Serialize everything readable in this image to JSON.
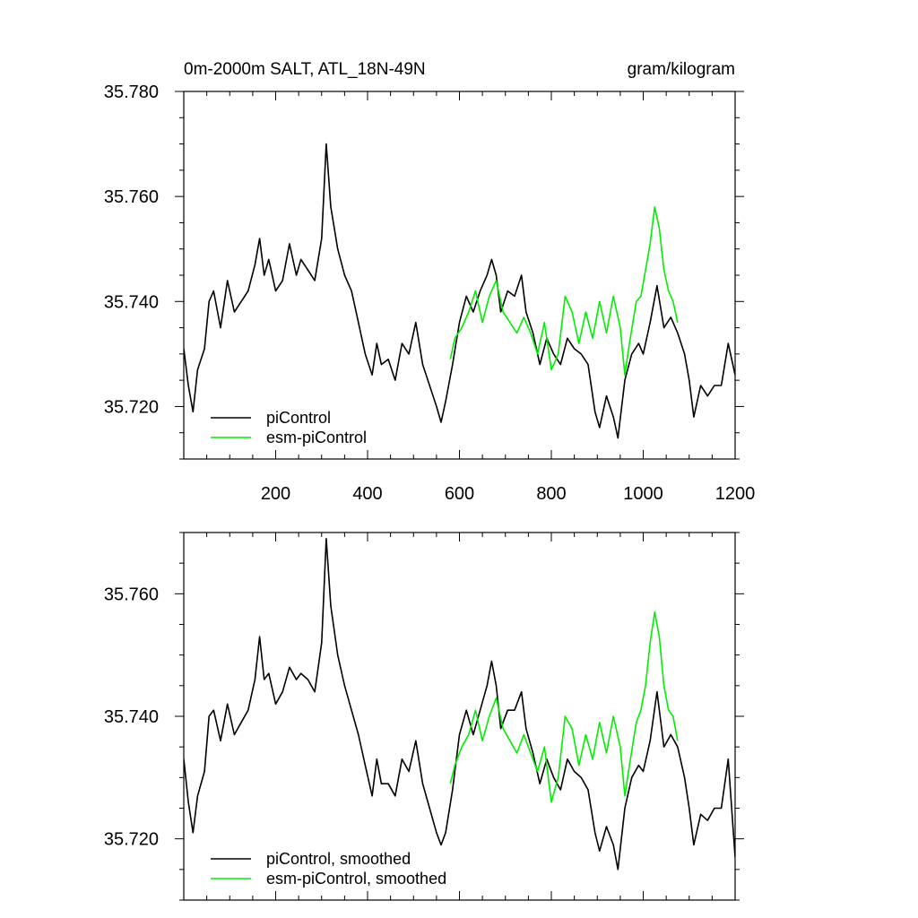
{
  "chart_data": [
    {
      "type": "line",
      "title": "0m-2000m SALT, ATL_18N-49N",
      "units": "gram/kilogram",
      "xlim": [
        0,
        1200
      ],
      "ylim": [
        35.71,
        35.78
      ],
      "x_tick_labels": [
        "200",
        "400",
        "600",
        "800",
        "1000",
        "1200"
      ],
      "y_tick_labels": [
        "35.780",
        "35.760",
        "35.740",
        "35.720"
      ],
      "grid": false,
      "legend_placement": "bottom-left",
      "series": [
        {
          "name": "piControl",
          "color": "#000000",
          "x": [
            0,
            10,
            20,
            30,
            45,
            55,
            65,
            80,
            95,
            110,
            125,
            140,
            155,
            165,
            175,
            185,
            200,
            215,
            230,
            245,
            255,
            270,
            285,
            300,
            310,
            320,
            335,
            350,
            365,
            380,
            395,
            410,
            420,
            430,
            445,
            460,
            475,
            490,
            505,
            520,
            535,
            550,
            560,
            570,
            585,
            600,
            615,
            630,
            645,
            660,
            670,
            680,
            690,
            705,
            720,
            735,
            745,
            760,
            775,
            790,
            805,
            820,
            835,
            850,
            865,
            880,
            895,
            905,
            920,
            935,
            945,
            960,
            975,
            990,
            1000,
            1015,
            1030,
            1045,
            1060,
            1075,
            1090,
            1100,
            1110,
            1125,
            1140,
            1155,
            1170,
            1185,
            1200
          ],
          "y": [
            35.731,
            35.724,
            35.719,
            35.727,
            35.731,
            35.74,
            35.742,
            35.735,
            35.744,
            35.738,
            35.74,
            35.742,
            35.747,
            35.752,
            35.745,
            35.748,
            35.742,
            35.744,
            35.751,
            35.745,
            35.748,
            35.746,
            35.744,
            35.752,
            35.77,
            35.758,
            35.75,
            35.745,
            35.742,
            35.736,
            35.73,
            35.726,
            35.732,
            35.728,
            35.729,
            35.725,
            35.732,
            35.73,
            35.736,
            35.728,
            35.724,
            35.72,
            35.717,
            35.721,
            35.728,
            35.736,
            35.741,
            35.738,
            35.742,
            35.745,
            35.748,
            35.745,
            35.738,
            35.742,
            35.741,
            35.745,
            35.738,
            35.734,
            35.728,
            35.733,
            35.73,
            35.728,
            35.733,
            35.731,
            35.73,
            35.728,
            35.719,
            35.716,
            35.722,
            35.718,
            35.714,
            35.725,
            35.73,
            35.732,
            35.73,
            35.736,
            35.743,
            35.735,
            35.737,
            35.734,
            35.73,
            35.725,
            35.718,
            35.724,
            35.722,
            35.724,
            35.724,
            35.732,
            35.726
          ]
        },
        {
          "name": "esm-piControl",
          "color": "#00ee00",
          "x": [
            580,
            590,
            605,
            620,
            635,
            650,
            665,
            680,
            695,
            710,
            725,
            740,
            755,
            770,
            785,
            800,
            815,
            830,
            845,
            860,
            875,
            890,
            905,
            920,
            935,
            950,
            960,
            970,
            985,
            995,
            1005,
            1015,
            1025,
            1035,
            1045,
            1055,
            1065,
            1075
          ],
          "y": [
            35.729,
            35.733,
            35.735,
            35.738,
            35.742,
            35.736,
            35.741,
            35.744,
            35.738,
            35.736,
            35.734,
            35.737,
            35.734,
            35.73,
            35.736,
            35.727,
            35.73,
            35.741,
            35.738,
            35.732,
            35.738,
            35.733,
            35.74,
            35.734,
            35.741,
            35.735,
            35.726,
            35.732,
            35.74,
            35.741,
            35.746,
            35.751,
            35.758,
            35.754,
            35.746,
            35.742,
            35.74,
            35.736
          ]
        }
      ]
    },
    {
      "type": "line",
      "xlim": [
        0,
        1200
      ],
      "ylim": [
        35.71,
        35.77
      ],
      "y_tick_labels": [
        "35.760",
        "35.740",
        "35.720"
      ],
      "grid": false,
      "legend_placement": "bottom-left",
      "series": [
        {
          "name": "piControl, smoothed",
          "color": "#000000",
          "x": [
            0,
            10,
            20,
            30,
            45,
            55,
            65,
            80,
            95,
            110,
            125,
            140,
            155,
            165,
            175,
            185,
            200,
            215,
            230,
            245,
            255,
            270,
            285,
            300,
            310,
            320,
            335,
            350,
            365,
            380,
            395,
            410,
            420,
            430,
            445,
            460,
            475,
            490,
            505,
            520,
            535,
            550,
            560,
            570,
            585,
            600,
            615,
            630,
            645,
            660,
            670,
            680,
            690,
            705,
            720,
            735,
            745,
            760,
            775,
            790,
            805,
            820,
            835,
            850,
            865,
            880,
            895,
            905,
            920,
            935,
            945,
            960,
            975,
            990,
            1000,
            1015,
            1030,
            1045,
            1060,
            1075,
            1090,
            1100,
            1110,
            1125,
            1140,
            1155,
            1170,
            1185,
            1200
          ],
          "y": [
            35.733,
            35.726,
            35.721,
            35.727,
            35.731,
            35.74,
            35.741,
            35.736,
            35.742,
            35.737,
            35.739,
            35.741,
            35.746,
            35.753,
            35.746,
            35.747,
            35.742,
            35.744,
            35.748,
            35.746,
            35.747,
            35.746,
            35.744,
            35.752,
            35.769,
            35.758,
            35.75,
            35.745,
            35.741,
            35.737,
            35.732,
            35.727,
            35.733,
            35.729,
            35.729,
            35.727,
            35.733,
            35.731,
            35.736,
            35.729,
            35.725,
            35.721,
            35.719,
            35.721,
            35.728,
            35.737,
            35.741,
            35.737,
            35.741,
            35.745,
            35.749,
            35.745,
            35.738,
            35.741,
            35.741,
            35.744,
            35.738,
            35.734,
            35.729,
            35.733,
            35.73,
            35.728,
            35.733,
            35.731,
            35.73,
            35.728,
            35.721,
            35.718,
            35.722,
            35.719,
            35.715,
            35.725,
            35.73,
            35.732,
            35.731,
            35.736,
            35.744,
            35.735,
            35.737,
            35.735,
            35.73,
            35.725,
            35.719,
            35.724,
            35.723,
            35.725,
            35.725,
            35.733,
            35.717
          ]
        },
        {
          "name": "esm-piControl, smoothed",
          "color": "#00ee00",
          "x": [
            580,
            590,
            605,
            620,
            635,
            650,
            665,
            680,
            695,
            710,
            725,
            740,
            755,
            770,
            785,
            800,
            815,
            830,
            845,
            860,
            875,
            890,
            905,
            920,
            935,
            950,
            960,
            970,
            985,
            995,
            1005,
            1015,
            1025,
            1035,
            1045,
            1055,
            1065,
            1075
          ],
          "y": [
            35.729,
            35.732,
            35.735,
            35.737,
            35.741,
            35.736,
            35.74,
            35.743,
            35.738,
            35.736,
            35.734,
            35.737,
            35.734,
            35.731,
            35.735,
            35.726,
            35.73,
            35.74,
            35.738,
            35.732,
            35.737,
            35.733,
            35.739,
            35.734,
            35.74,
            35.735,
            35.727,
            35.732,
            35.739,
            35.741,
            35.745,
            35.752,
            35.757,
            35.753,
            35.745,
            35.741,
            35.74,
            35.736
          ]
        }
      ]
    }
  ]
}
